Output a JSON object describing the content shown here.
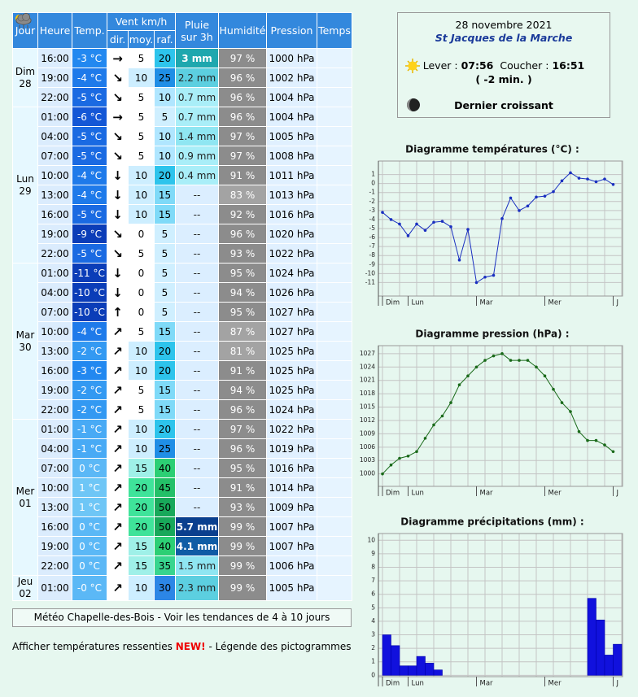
{
  "info": {
    "date": "28 novembre 2021",
    "place": "St Jacques de la Marche",
    "sunrise_label": "Lever :",
    "sunrise": "07:56",
    "sunset_label": "Coucher :",
    "sunset": "16:51",
    "day_change": "( -2 min. )",
    "moon": "Dernier croissant"
  },
  "table": {
    "headers": {
      "day": "Jour",
      "hour": "Heure",
      "temp": "Temp.",
      "wind": "Vent km/h",
      "dir": "dir.",
      "avg": "moy.",
      "gust": "raf.",
      "rain": "Pluie sur 3h",
      "humidity": "Humidité",
      "pressure": "Pression",
      "weather": "Temps"
    },
    "days": [
      {
        "name": "Dim",
        "date": "28",
        "rows": [
          [
            "16:00",
            "-3 °C",
            "→",
            "5",
            "20",
            "3 mm",
            "97 %",
            "1000 hPa"
          ],
          [
            "19:00",
            "-4 °C",
            "↘",
            "10",
            "25",
            "2.2 mm",
            "96 %",
            "1002 hPa"
          ],
          [
            "22:00",
            "-5 °C",
            "↘",
            "5",
            "10",
            "0.7 mm",
            "96 %",
            "1004 hPa"
          ]
        ]
      },
      {
        "name": "Lun",
        "date": "29",
        "rows": [
          [
            "01:00",
            "-6 °C",
            "→",
            "5",
            "5",
            "0.7 mm",
            "96 %",
            "1004 hPa"
          ],
          [
            "04:00",
            "-5 °C",
            "↘",
            "5",
            "10",
            "1.4 mm",
            "97 %",
            "1005 hPa"
          ],
          [
            "07:00",
            "-5 °C",
            "↘",
            "5",
            "10",
            "0.9 mm",
            "97 %",
            "1008 hPa"
          ],
          [
            "10:00",
            "-4 °C",
            "↓",
            "10",
            "20",
            "0.4 mm",
            "91 %",
            "1011 hPa"
          ],
          [
            "13:00",
            "-4 °C",
            "↓",
            "10",
            "15",
            "--",
            "83 %",
            "1013 hPa"
          ],
          [
            "16:00",
            "-5 °C",
            "↓",
            "10",
            "15",
            "--",
            "92 %",
            "1016 hPa"
          ],
          [
            "19:00",
            "-9 °C",
            "↘",
            "0",
            "5",
            "--",
            "96 %",
            "1020 hPa"
          ],
          [
            "22:00",
            "-5 °C",
            "↘",
            "5",
            "5",
            "--",
            "93 %",
            "1022 hPa"
          ]
        ]
      },
      {
        "name": "Mar",
        "date": "30",
        "rows": [
          [
            "01:00",
            "-11 °C",
            "↓",
            "0",
            "5",
            "--",
            "95 %",
            "1024 hPa"
          ],
          [
            "04:00",
            "-10 °C",
            "↓",
            "0",
            "5",
            "--",
            "94 %",
            "1026 hPa"
          ],
          [
            "07:00",
            "-10 °C",
            "↑",
            "0",
            "5",
            "--",
            "95 %",
            "1027 hPa"
          ],
          [
            "10:00",
            "-4 °C",
            "↗",
            "5",
            "15",
            "--",
            "87 %",
            "1027 hPa"
          ],
          [
            "13:00",
            "-2 °C",
            "↗",
            "10",
            "20",
            "--",
            "81 %",
            "1025 hPa"
          ],
          [
            "16:00",
            "-3 °C",
            "↗",
            "10",
            "20",
            "--",
            "91 %",
            "1025 hPa"
          ],
          [
            "19:00",
            "-2 °C",
            "↗",
            "5",
            "15",
            "--",
            "94 %",
            "1025 hPa"
          ],
          [
            "22:00",
            "-2 °C",
            "↗",
            "5",
            "15",
            "--",
            "96 %",
            "1024 hPa"
          ]
        ]
      },
      {
        "name": "Mer",
        "date": "01",
        "rows": [
          [
            "01:00",
            "-1 °C",
            "↗",
            "10",
            "20",
            "--",
            "97 %",
            "1022 hPa"
          ],
          [
            "04:00",
            "-1 °C",
            "↗",
            "10",
            "25",
            "--",
            "96 %",
            "1019 hPa"
          ],
          [
            "07:00",
            "0 °C",
            "↗",
            "15",
            "40",
            "--",
            "95 %",
            "1016 hPa"
          ],
          [
            "10:00",
            "1 °C",
            "↗",
            "20",
            "45",
            "--",
            "91 %",
            "1014 hPa"
          ],
          [
            "13:00",
            "1 °C",
            "↗",
            "20",
            "50",
            "--",
            "93 %",
            "1009 hPa"
          ],
          [
            "16:00",
            "0 °C",
            "↗",
            "20",
            "50",
            "5.7 mm",
            "99 %",
            "1007 hPa"
          ],
          [
            "19:00",
            "0 °C",
            "↗",
            "15",
            "40",
            "4.1 mm",
            "99 %",
            "1007 hPa"
          ],
          [
            "22:00",
            "0 °C",
            "↗",
            "15",
            "35",
            "1.5 mm",
            "99 %",
            "1006 hPa"
          ]
        ]
      },
      {
        "name": "Jeu",
        "date": "02",
        "rows": [
          [
            "01:00",
            "-0 °C",
            "↗",
            "10",
            "30",
            "2.3 mm",
            "99 %",
            "1005 hPa"
          ]
        ]
      }
    ]
  },
  "footer": {
    "link": "Météo Chapelle-des-Bois - Voir les tendances de 4 à 10 jours",
    "felt": "Afficher températures ressenties",
    "new": "NEW!",
    "legend": "- Légende des pictogrammes"
  },
  "chart_data": [
    {
      "type": "line",
      "title": "Diagramme températures (°C) :",
      "categories": [
        "Dim",
        null,
        null,
        "Lun",
        null,
        null,
        null,
        null,
        null,
        null,
        null,
        "Mar",
        null,
        null,
        null,
        null,
        null,
        null,
        null,
        "Mer",
        null,
        null,
        null,
        null,
        null,
        null,
        null,
        "J"
      ],
      "values": [
        -3.2,
        -4,
        -4.5,
        -5.8,
        -4.5,
        -5.2,
        -4.3,
        -4.2,
        -4.8,
        -8.5,
        -5.1,
        -11,
        -10.4,
        -10.2,
        -3.9,
        -1.6,
        -3,
        -2.5,
        -1.5,
        -1.4,
        -0.9,
        0.3,
        1.2,
        0.6,
        0.5,
        0.2,
        0.5,
        -0.1
      ],
      "color": "#1a2fc0",
      "ylim": [
        -12.5,
        2.5
      ],
      "yticks": [
        1,
        0,
        -1,
        -2,
        -3,
        -4,
        -5,
        -6,
        -7,
        -8,
        -9,
        -10,
        -11
      ],
      "grid": true
    },
    {
      "type": "line",
      "title": "Diagramme pression (hPa) :",
      "categories": [
        "Dim",
        null,
        null,
        "Lun",
        null,
        null,
        null,
        null,
        null,
        null,
        null,
        "Mar",
        null,
        null,
        null,
        null,
        null,
        null,
        null,
        "Mer",
        null,
        null,
        null,
        null,
        null,
        null,
        null,
        "J"
      ],
      "values": [
        1000,
        1002,
        1003.5,
        1004,
        1005,
        1008,
        1011,
        1013,
        1016,
        1020,
        1022,
        1024,
        1025.5,
        1026.5,
        1027,
        1025.5,
        1025.5,
        1025.5,
        1024,
        1022,
        1019,
        1016,
        1014,
        1009.5,
        1007.5,
        1007.5,
        1006.5,
        1005
      ],
      "color": "#1a6a1a",
      "ylim": [
        997.2,
        1028.8
      ],
      "yticks": [
        1000,
        1003,
        1006,
        1009,
        1012,
        1015,
        1018,
        1021,
        1024,
        1027
      ],
      "grid": true
    },
    {
      "type": "bar",
      "title": "Diagramme précipitations (mm) :",
      "categories": [
        "Dim",
        null,
        null,
        "Lun",
        null,
        null,
        null,
        null,
        null,
        null,
        null,
        "Mar",
        null,
        null,
        null,
        null,
        null,
        null,
        null,
        "Mer",
        null,
        null,
        null,
        null,
        null,
        null,
        null,
        "J"
      ],
      "values": [
        3,
        2.2,
        0.7,
        0.7,
        1.4,
        0.9,
        0.4,
        0,
        0,
        0,
        0,
        0,
        0,
        0,
        0,
        0,
        0,
        0,
        0,
        0,
        0,
        0,
        0,
        0,
        5.7,
        4.1,
        1.5,
        2.3
      ],
      "color": "#1111dd",
      "ylim": [
        -0.1,
        10.5
      ],
      "yticks": [
        0,
        1,
        2,
        3,
        4,
        5,
        6,
        7,
        8,
        9,
        10
      ],
      "grid": true
    }
  ]
}
